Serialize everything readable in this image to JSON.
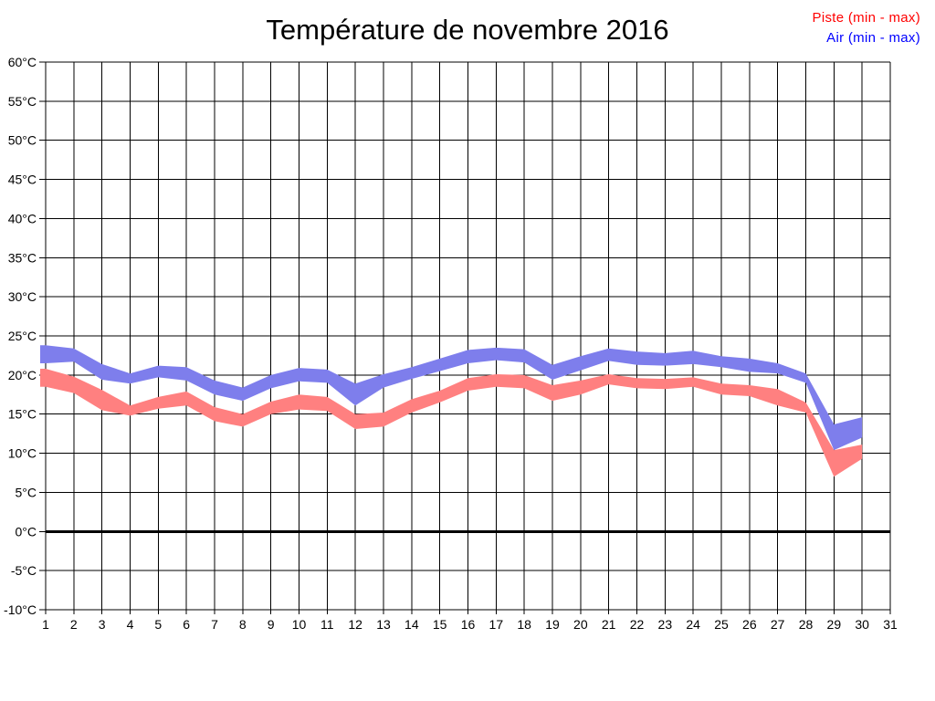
{
  "chart_data": {
    "type": "area",
    "title": "Température de novembre 2016",
    "subtitle": "",
    "unit": "°C",
    "legend_position": "top-right",
    "legend": [
      {
        "label": "Piste (min - max)",
        "color": "#ff0000",
        "series_key": "piste"
      },
      {
        "label": "Air (min - max)",
        "color": "#0000ff",
        "series_key": "air"
      }
    ],
    "x": [
      1,
      2,
      3,
      4,
      5,
      6,
      7,
      8,
      9,
      10,
      11,
      12,
      13,
      14,
      15,
      16,
      17,
      18,
      19,
      20,
      21,
      22,
      23,
      24,
      25,
      26,
      27,
      28,
      29,
      30
    ],
    "x_axis": {
      "tick_values": [
        1,
        2,
        3,
        4,
        5,
        6,
        7,
        8,
        9,
        10,
        11,
        12,
        13,
        14,
        15,
        16,
        17,
        18,
        19,
        20,
        21,
        22,
        23,
        24,
        25,
        26,
        27,
        28,
        29,
        30,
        31
      ],
      "tick_labels": [
        "1",
        "2",
        "3",
        "4",
        "5",
        "6",
        "7",
        "8",
        "9",
        "10",
        "11",
        "12",
        "13",
        "14",
        "15",
        "16",
        "17",
        "18",
        "19",
        "20",
        "21",
        "22",
        "23",
        "24",
        "25",
        "26",
        "27",
        "28",
        "29",
        "30",
        "31"
      ]
    },
    "y_axis": {
      "min": -10,
      "max": 60,
      "step": 5,
      "zero_line_value": 0,
      "tick_values": [
        -10,
        -5,
        0,
        5,
        10,
        15,
        20,
        25,
        30,
        35,
        40,
        45,
        50,
        55,
        60
      ],
      "tick_labels": [
        "-10°C",
        "-5°C",
        "0°C",
        "5°C",
        "10°C",
        "15°C",
        "20°C",
        "25°C",
        "30°C",
        "35°C",
        "40°C",
        "45°C",
        "50°C",
        "55°C",
        "60°C"
      ]
    },
    "grid": {
      "shown": true,
      "color": "#000000",
      "zero_line_width": 3
    },
    "series": [
      {
        "name": "Piste (min - max)",
        "key": "piste",
        "band_color": "#ff8080",
        "min": [
          18.5,
          17.7,
          15.5,
          14.8,
          15.7,
          16.1,
          14.1,
          13.4,
          15.0,
          15.6,
          15.4,
          13.1,
          13.4,
          15.2,
          16.5,
          18.0,
          18.5,
          18.3,
          16.7,
          17.5,
          18.8,
          18.3,
          18.2,
          18.5,
          17.5,
          17.3,
          16.1,
          15.2,
          7.0,
          9.3
        ],
        "max": [
          20.8,
          19.8,
          18.1,
          16.1,
          17.2,
          17.9,
          15.9,
          15.0,
          16.6,
          17.5,
          17.2,
          15.0,
          15.2,
          16.9,
          18.0,
          19.6,
          20.1,
          20.0,
          18.7,
          19.3,
          20.1,
          19.6,
          19.5,
          19.7,
          18.9,
          18.7,
          18.2,
          16.5,
          10.4,
          11.1
        ]
      },
      {
        "name": "Air (min - max)",
        "key": "air",
        "band_color": "#7e7eec",
        "min": [
          21.5,
          21.7,
          19.4,
          18.9,
          19.7,
          19.3,
          17.5,
          16.7,
          18.3,
          19.2,
          19.0,
          16.1,
          18.4,
          19.5,
          20.5,
          21.5,
          21.9,
          21.6,
          19.4,
          20.6,
          21.8,
          21.3,
          21.2,
          21.4,
          21.0,
          20.4,
          20.2,
          19.0,
          10.4,
          12.0
        ],
        "max": [
          23.8,
          23.4,
          21.4,
          20.2,
          21.2,
          21.0,
          19.3,
          18.4,
          20.0,
          20.9,
          20.7,
          18.9,
          20.1,
          21.0,
          22.1,
          23.2,
          23.5,
          23.3,
          21.3,
          22.4,
          23.4,
          23.0,
          22.8,
          23.1,
          22.4,
          22.1,
          21.5,
          20.2,
          13.7,
          14.6
        ]
      }
    ],
    "background": "#ffffff"
  }
}
